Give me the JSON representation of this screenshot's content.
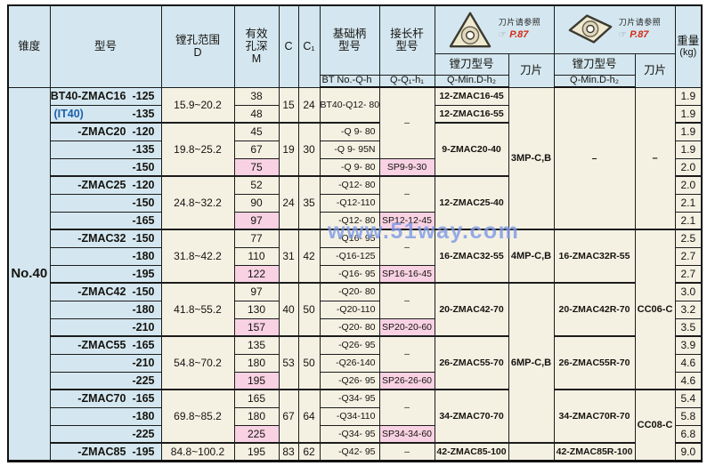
{
  "header": {
    "taper": "锥度",
    "model": "型号",
    "bore_range": "镗孔范围",
    "bore_range_sub": "D",
    "depth_l1": "有效",
    "depth_l2": "孔深",
    "depth_sub": "M",
    "c": "C",
    "c1": "C₁",
    "shank_l1": "基础柄",
    "shank_l2": "型号",
    "shank_sub": "BT No.-Q-h",
    "ext_l1": "接长杆",
    "ext_l2": "型号",
    "ext_sub": "Q-Q₁-h₁",
    "cutter": "镗刀型号",
    "cutter_sub": "Q-Min.D-h₂",
    "insert": "刀片",
    "insert_ref": "刀片请参照",
    "insert_ref_pointer": "☞",
    "insert_ref_page": "P.87",
    "weight": "重量",
    "weight_unit": "(kg)"
  },
  "taper": {
    "value": "No.40"
  },
  "watermark": "www.51way.com",
  "colors": {
    "header_bg": "#d4e7f0",
    "cell_bg": "#f4f1e3",
    "highlight_pink": "#f8d1e2",
    "ref_page_red": "#d42b14",
    "it40_blue": "#1d5fae",
    "watermark_blue": "#4068d8"
  },
  "table": {
    "model_rows": [
      {
        "name": "BT40-ZMAC16",
        "size": "-125"
      },
      {
        "name": "(IT40)",
        "size": "-135",
        "blue": true
      },
      {
        "name": "-ZMAC20",
        "size": "-120"
      },
      {
        "name": "",
        "size": "-135"
      },
      {
        "name": "",
        "size": "-150"
      },
      {
        "name": "-ZMAC25",
        "size": "-120"
      },
      {
        "name": "",
        "size": "-150"
      },
      {
        "name": "",
        "size": "-165"
      },
      {
        "name": "-ZMAC32",
        "size": "-150"
      },
      {
        "name": "",
        "size": "-180"
      },
      {
        "name": "",
        "size": "-195"
      },
      {
        "name": "-ZMAC42",
        "size": "-150"
      },
      {
        "name": "",
        "size": "-180"
      },
      {
        "name": "",
        "size": "-210"
      },
      {
        "name": "-ZMAC55",
        "size": "-165"
      },
      {
        "name": "",
        "size": "-210"
      },
      {
        "name": "",
        "size": "-225"
      },
      {
        "name": "-ZMAC70",
        "size": "-165"
      },
      {
        "name": "",
        "size": "-180"
      },
      {
        "name": "",
        "size": "-225"
      },
      {
        "name": "-ZMAC85",
        "size": "-195"
      }
    ],
    "range_cells": [
      {
        "text": "15.9~20.2",
        "span": 2
      },
      {
        "text": "19.8~25.2",
        "span": 3
      },
      {
        "text": "24.8~32.2",
        "span": 3
      },
      {
        "text": "31.8~42.2",
        "span": 3
      },
      {
        "text": "41.8~55.2",
        "span": 3
      },
      {
        "text": "54.8~70.2",
        "span": 3
      },
      {
        "text": "69.8~85.2",
        "span": 3
      },
      {
        "text": "84.8~100.2",
        "span": 1
      }
    ],
    "m_values": [
      {
        "v": "38"
      },
      {
        "v": "48"
      },
      {
        "v": "45"
      },
      {
        "v": "67"
      },
      {
        "v": "75",
        "hl": true
      },
      {
        "v": "52"
      },
      {
        "v": "90"
      },
      {
        "v": "97",
        "hl": true
      },
      {
        "v": "77"
      },
      {
        "v": "110"
      },
      {
        "v": "122",
        "hl": true
      },
      {
        "v": "97"
      },
      {
        "v": "130"
      },
      {
        "v": "157",
        "hl": true
      },
      {
        "v": "135"
      },
      {
        "v": "180"
      },
      {
        "v": "195",
        "hl": true
      },
      {
        "v": "165"
      },
      {
        "v": "180"
      },
      {
        "v": "225",
        "hl": true
      },
      {
        "v": "195"
      }
    ],
    "c_cells": [
      {
        "c": "15",
        "c1": "24",
        "span": 2
      },
      {
        "c": "19",
        "c1": "30",
        "span": 3
      },
      {
        "c": "24",
        "c1": "35",
        "span": 3
      },
      {
        "c": "31",
        "c1": "42",
        "span": 3
      },
      {
        "c": "40",
        "c1": "50",
        "span": 3
      },
      {
        "c": "53",
        "c1": "50",
        "span": 3
      },
      {
        "c": "67",
        "c1": "64",
        "span": 3
      },
      {
        "c": "83",
        "c1": "62",
        "span": 1
      }
    ],
    "shank_cells": [
      {
        "text": "BT40-Q12- 80",
        "span": 2
      },
      {
        "text": "-Q 9- 80"
      },
      {
        "text": "-Q 9- 95N"
      },
      {
        "text": "-Q 9- 80"
      },
      {
        "text": "-Q12- 80"
      },
      {
        "text": "-Q12-110"
      },
      {
        "text": "-Q12- 80"
      },
      {
        "text": "-Q16- 95"
      },
      {
        "text": "-Q16-125"
      },
      {
        "text": "-Q16- 95"
      },
      {
        "text": "-Q20- 80"
      },
      {
        "text": "-Q20-110"
      },
      {
        "text": "-Q20- 80"
      },
      {
        "text": "-Q26- 95"
      },
      {
        "text": "-Q26-140"
      },
      {
        "text": "-Q26- 95"
      },
      {
        "text": "-Q34- 95"
      },
      {
        "text": "-Q34-110"
      },
      {
        "text": "-Q34- 95"
      },
      {
        "text": "-Q42- 95"
      }
    ],
    "ext_cells": [
      {
        "text": "–",
        "span": 4
      },
      {
        "text": "SP9-9-30",
        "hl": true
      },
      {
        "text": "–",
        "span": 2
      },
      {
        "text": "SP12-12-45",
        "hl": true
      },
      {
        "text": "–",
        "span": 2
      },
      {
        "text": "SP16-16-45",
        "hl": true
      },
      {
        "text": "–",
        "span": 2
      },
      {
        "text": "SP20-20-60",
        "hl": true
      },
      {
        "text": "–",
        "span": 2
      },
      {
        "text": "SP26-26-60",
        "hl": true
      },
      {
        "text": "–",
        "span": 2
      },
      {
        "text": "SP34-34-60",
        "hl": true
      },
      {
        "text": "–",
        "span": 1
      }
    ],
    "cutter1_cells": [
      {
        "text": "12-ZMAC16-45"
      },
      {
        "text": "12-ZMAC16-55"
      },
      {
        "text": "9-ZMAC20-40",
        "span": 3
      },
      {
        "text": "12-ZMAC25-40",
        "span": 3
      },
      {
        "text": "16-ZMAC32-55",
        "span": 3
      },
      {
        "text": "20-ZMAC42-70",
        "span": 3
      },
      {
        "text": "26-ZMAC55-70",
        "span": 3
      },
      {
        "text": "34-ZMAC70-70",
        "span": 3
      },
      {
        "text": "42-ZMAC85-100"
      }
    ],
    "insert1_cells": [
      {
        "text": "3MP-C,B",
        "span": 8
      },
      {
        "text": "4MP-C,B",
        "span": 3
      },
      {
        "text": "6MP-C,B",
        "span": 9
      },
      {
        "text": "",
        "span": 1
      }
    ],
    "cutter2_cells": [
      {
        "text": "–",
        "span": 8
      },
      {
        "text": "16-ZMAC32R-55",
        "span": 3
      },
      {
        "text": "20-ZMAC42R-70",
        "span": 3
      },
      {
        "text": "26-ZMAC55R-70",
        "span": 3
      },
      {
        "text": "34-ZMAC70R-70",
        "span": 3
      },
      {
        "text": "42-ZMAC85R-100",
        "span": 1
      }
    ],
    "insert2_cells": [
      {
        "text": "–",
        "span": 8
      },
      {
        "text": "CC06-C",
        "span": 9
      },
      {
        "text": "CC08-C",
        "span": 4
      }
    ],
    "weights": [
      "1.9",
      "1.9",
      "1.9",
      "1.9",
      "2.0",
      "2.0",
      "2.1",
      "2.1",
      "2.5",
      "2.7",
      "2.7",
      "3.0",
      "3.2",
      "3.5",
      "3.9",
      "4.6",
      "4.6",
      "5.4",
      "5.8",
      "6.8",
      "9.0"
    ]
  }
}
